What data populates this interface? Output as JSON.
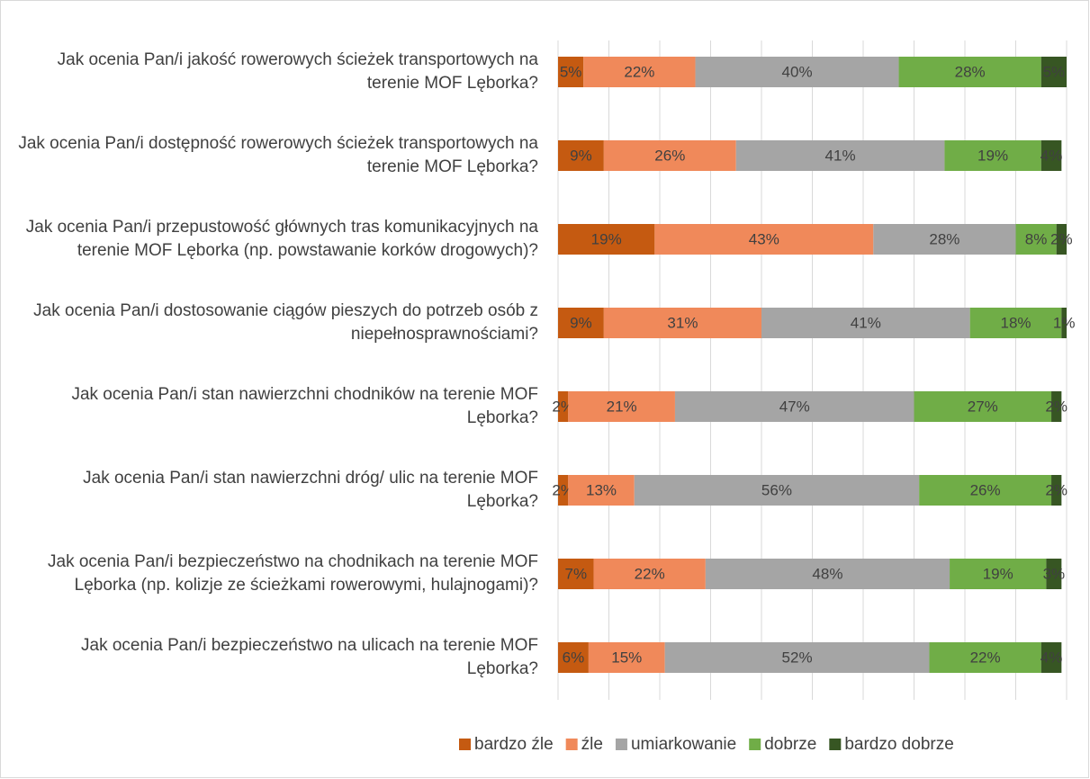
{
  "chart_data": {
    "type": "stacked_barh",
    "categories": [
      "Jak ocenia Pan/i jakość rowerowych ścieżek transportowych na terenie MOF Lęborka?",
      "Jak ocenia Pan/i dostępność rowerowych ścieżek transportowych na terenie MOF Lęborka?",
      "Jak ocenia Pan/i przepustowość głównych tras komunikacyjnych na terenie MOF Lęborka (np. powstawanie korków drogowych)?",
      "Jak ocenia Pan/i dostosowanie ciągów pieszych do potrzeb osób z niepełnosprawnościami?",
      "Jak ocenia Pan/i stan nawierzchni chodników na terenie MOF Lęborka?",
      "Jak ocenia Pan/i stan nawierzchni dróg/ ulic na terenie MOF Lęborka?",
      "Jak ocenia Pan/i bezpieczeństwo na chodnikach na terenie MOF Lęborka (np. kolizje ze ścieżkami rowerowymi, hulajnogami)?",
      "Jak ocenia Pan/i bezpieczeństwo na ulicach na terenie MOF Lęborka?"
    ],
    "series": [
      {
        "name": "bardzo źle",
        "color": "#c55a11",
        "values": [
          5,
          9,
          19,
          9,
          2,
          2,
          7,
          6
        ],
        "value_labels": [
          "5%",
          "9%",
          "19%",
          "9%",
          "2%",
          "2%",
          "7%",
          "6%"
        ]
      },
      {
        "name": "źle",
        "color": "#f0895a",
        "values": [
          22,
          26,
          43,
          31,
          21,
          13,
          22,
          15
        ],
        "value_labels": [
          "22%",
          "26%",
          "43%",
          "31%",
          "21%",
          "13%",
          "22%",
          "15%"
        ]
      },
      {
        "name": "umiarkowanie",
        "color": "#a5a5a5",
        "values": [
          40,
          41,
          28,
          41,
          47,
          56,
          48,
          52
        ],
        "value_labels": [
          "40%",
          "41%",
          "28%",
          "41%",
          "47%",
          "56%",
          "48%",
          "52%"
        ]
      },
      {
        "name": "dobrze",
        "color": "#70ad47",
        "values": [
          28,
          19,
          8,
          18,
          27,
          26,
          19,
          22
        ],
        "value_labels": [
          "28%",
          "19%",
          "8%",
          "18%",
          "27%",
          "26%",
          "19%",
          "22%"
        ]
      },
      {
        "name": "bardzo dobrze",
        "color": "#375623",
        "values": [
          5,
          4,
          2,
          1,
          2,
          2,
          3,
          4
        ],
        "value_labels": [
          "5%",
          "4%",
          "2%",
          "1%",
          "2%",
          "2%",
          "3%",
          "4%"
        ]
      }
    ],
    "xlim": [
      0,
      100
    ],
    "xticks": [
      0,
      10,
      20,
      30,
      40,
      50,
      60,
      70,
      80,
      90,
      100
    ],
    "grid": true,
    "legend": "bottom"
  }
}
